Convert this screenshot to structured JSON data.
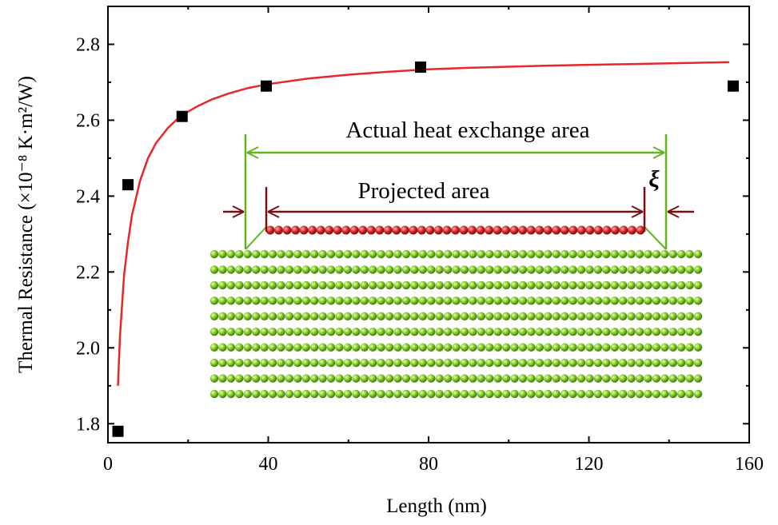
{
  "chart_data": {
    "type": "scatter",
    "xlabel": "Length (nm)",
    "ylabel": "Thermal Resistance (×10⁻⁸ K·m²/W)",
    "xlim": [
      0,
      160
    ],
    "ylim": [
      1.75,
      2.9
    ],
    "x_ticks": [
      "0",
      "40",
      "80",
      "120",
      "160"
    ],
    "y_ticks": [
      "1.8",
      "2.0",
      "2.2",
      "2.4",
      "2.6",
      "2.8"
    ],
    "series": [
      {
        "kind": "scatter",
        "marker": "square",
        "color": "#000000",
        "x": [
          2.5,
          5,
          18.5,
          39.5,
          78,
          156
        ],
        "y": [
          1.78,
          2.43,
          2.61,
          2.69,
          2.74,
          2.69
        ]
      },
      {
        "kind": "line",
        "color": "#e8262a",
        "x": [
          2.5,
          3,
          4,
          5,
          6,
          8,
          10,
          12,
          15,
          18,
          22,
          26,
          30,
          35,
          40,
          50,
          60,
          70,
          80,
          90,
          100,
          110,
          120,
          130,
          140,
          150,
          155
        ],
        "y": [
          1.9,
          2.03,
          2.19,
          2.28,
          2.35,
          2.44,
          2.5,
          2.54,
          2.58,
          2.61,
          2.635,
          2.655,
          2.67,
          2.685,
          2.695,
          2.71,
          2.72,
          2.728,
          2.734,
          2.738,
          2.741,
          2.744,
          2.746,
          2.748,
          2.75,
          2.752,
          2.753
        ]
      }
    ],
    "inset": {
      "annotations": {
        "actual": "Actual heat exchange area",
        "projected": "Projected area",
        "xi": "ξ"
      },
      "colors": {
        "green_atom": "#7cc520",
        "red_atom": "#d42525",
        "green_line": "#62b31f",
        "dark_red_line": "#7a0f0f"
      },
      "substrate": {
        "rows": 10,
        "cols": 59
      },
      "chain": {
        "atoms": 45
      }
    }
  }
}
